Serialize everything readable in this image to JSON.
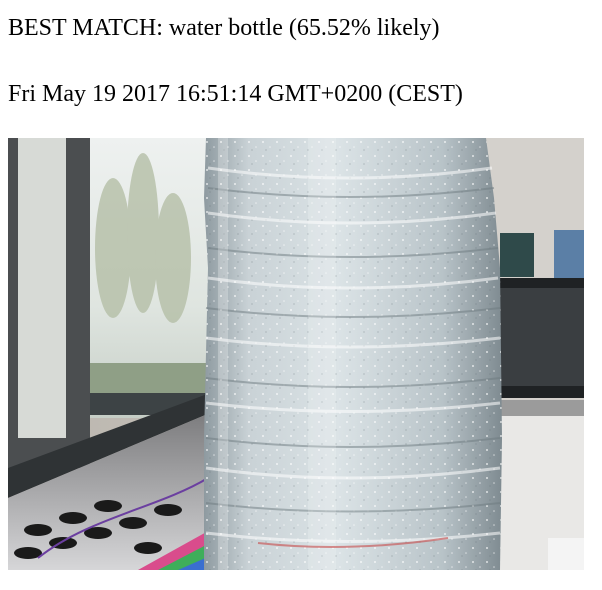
{
  "result": {
    "prefix": "BEST MATCH: ",
    "label": "water bottle",
    "confidence": "(65.52% likely)"
  },
  "timestamp": "Fri May 19 2017 16:51:14 GMT+0200 (CEST)",
  "photo": {
    "subject": "water-bottle"
  }
}
